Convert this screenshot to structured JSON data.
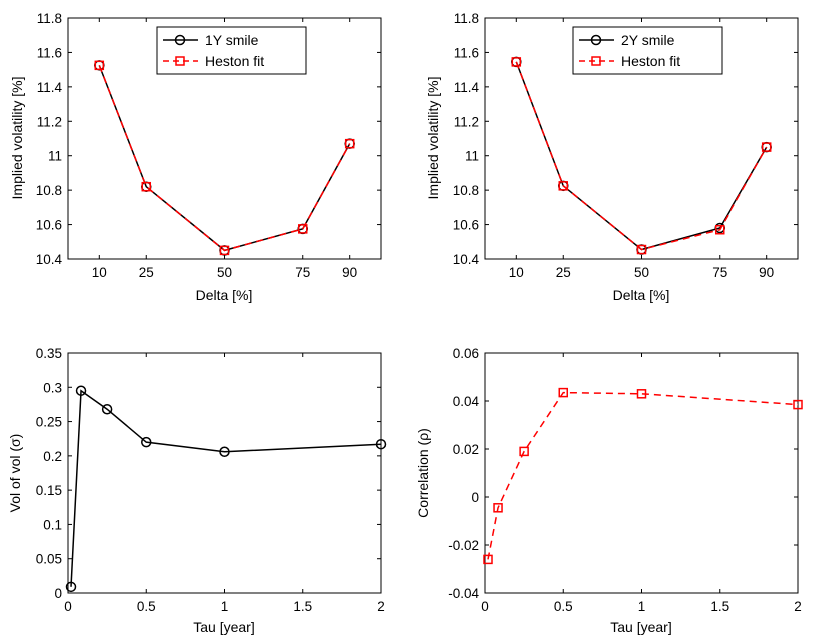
{
  "chart_data": [
    {
      "id": "p1",
      "type": "line",
      "xlabel": "Delta [%]",
      "ylabel": "Implied volatility [%]",
      "xlim": [
        0,
        100
      ],
      "ylim": [
        10.4,
        11.8
      ],
      "xticks": [
        10,
        25,
        50,
        75,
        90
      ],
      "xtick_labels": [
        "10",
        "25",
        "50",
        "75",
        "90"
      ],
      "yticks": [
        10.4,
        10.6,
        10.8,
        11,
        11.2,
        11.4,
        11.6,
        11.8
      ],
      "ytick_labels": [
        "10.4",
        "10.6",
        "10.8",
        "11",
        "11.2",
        "11.4",
        "11.6",
        "11.8"
      ],
      "legend": "top-center",
      "series": [
        {
          "name": "1Y smile",
          "style": "solid-circle",
          "color": "#000000",
          "x": [
            10,
            25,
            50,
            75,
            90
          ],
          "y": [
            11.525,
            10.82,
            10.45,
            10.575,
            11.07
          ]
        },
        {
          "name": "Heston fit",
          "style": "dashed-square",
          "color": "#ff0000",
          "x": [
            10,
            25,
            50,
            75,
            90
          ],
          "y": [
            11.525,
            10.82,
            10.45,
            10.575,
            11.07
          ]
        }
      ]
    },
    {
      "id": "p2",
      "type": "line",
      "xlabel": "Delta [%]",
      "ylabel": "Implied volatility [%]",
      "xlim": [
        0,
        100
      ],
      "ylim": [
        10.4,
        11.8
      ],
      "xticks": [
        10,
        25,
        50,
        75,
        90
      ],
      "xtick_labels": [
        "10",
        "25",
        "50",
        "75",
        "90"
      ],
      "yticks": [
        10.4,
        10.6,
        10.8,
        11,
        11.2,
        11.4,
        11.6,
        11.8
      ],
      "ytick_labels": [
        "10.4",
        "10.6",
        "10.8",
        "11",
        "11.2",
        "11.4",
        "11.6",
        "11.8"
      ],
      "legend": "top-center",
      "series": [
        {
          "name": "2Y smile",
          "style": "solid-circle",
          "color": "#000000",
          "x": [
            10,
            25,
            50,
            75,
            90
          ],
          "y": [
            11.545,
            10.825,
            10.455,
            10.58,
            11.05
          ]
        },
        {
          "name": "Heston fit",
          "style": "dashed-square",
          "color": "#ff0000",
          "x": [
            10,
            25,
            50,
            75,
            90
          ],
          "y": [
            11.545,
            10.825,
            10.455,
            10.57,
            11.05
          ]
        }
      ]
    },
    {
      "id": "p3",
      "type": "line",
      "xlabel": "Tau [year]",
      "ylabel": "Vol of vol (σ)",
      "xlim": [
        0,
        2
      ],
      "ylim": [
        0,
        0.35
      ],
      "xticks": [
        0,
        0.5,
        1,
        1.5,
        2
      ],
      "xtick_labels": [
        "0",
        "0.5",
        "1",
        "1.5",
        "2"
      ],
      "yticks": [
        0,
        0.05,
        0.1,
        0.15,
        0.2,
        0.25,
        0.3,
        0.35
      ],
      "ytick_labels": [
        "0",
        "0.05",
        "0.1",
        "0.15",
        "0.2",
        "0.25",
        "0.3",
        "0.35"
      ],
      "legend": "none",
      "series": [
        {
          "name": "Vol of vol",
          "style": "solid-circle",
          "color": "#000000",
          "x": [
            0.0192,
            0.0833,
            0.25,
            0.5,
            1,
            2
          ],
          "y": [
            0.009,
            0.295,
            0.268,
            0.22,
            0.206,
            0.217
          ]
        }
      ]
    },
    {
      "id": "p4",
      "type": "line",
      "xlabel": "Tau [year]",
      "ylabel": "Correlation (ρ)",
      "xlim": [
        0,
        2
      ],
      "ylim": [
        -0.04,
        0.06
      ],
      "xticks": [
        0,
        0.5,
        1,
        1.5,
        2
      ],
      "xtick_labels": [
        "0",
        "0.5",
        "1",
        "1.5",
        "2"
      ],
      "yticks": [
        -0.04,
        -0.02,
        0,
        0.02,
        0.04,
        0.06
      ],
      "ytick_labels": [
        "-0.04",
        "-0.02",
        "0",
        "0.02",
        "0.04",
        "0.06"
      ],
      "legend": "none",
      "series": [
        {
          "name": "Correlation",
          "style": "dashed-square",
          "color": "#ff0000",
          "x": [
            0.0192,
            0.0833,
            0.25,
            0.5,
            1,
            2
          ],
          "y": [
            -0.026,
            -0.0045,
            0.019,
            0.0435,
            0.043,
            0.0385
          ]
        }
      ]
    }
  ]
}
